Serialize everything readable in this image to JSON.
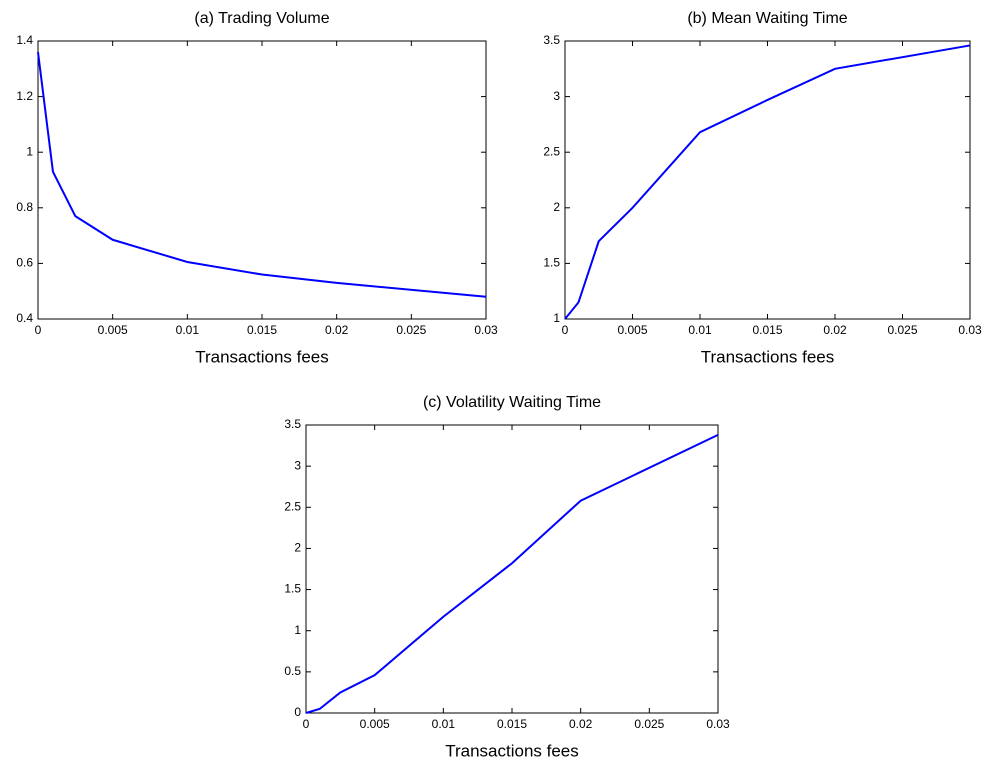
{
  "chart_data": [
    {
      "type": "line",
      "title": "(a) Trading Volume",
      "x_label": "Transactions fees",
      "x": [
        0,
        0.001,
        0.0025,
        0.005,
        0.01,
        0.015,
        0.02,
        0.03
      ],
      "values": [
        1.36,
        0.93,
        0.77,
        0.685,
        0.605,
        0.56,
        0.53,
        0.48
      ],
      "color": "#0000ff",
      "xlim": [
        0,
        0.03
      ],
      "xticks": [
        0,
        0.005,
        0.01,
        0.015,
        0.02,
        0.025,
        0.03
      ],
      "ylim": [
        0.4,
        1.4
      ],
      "yticks": [
        0.4,
        0.6,
        0.8,
        1,
        1.2,
        1.4
      ]
    },
    {
      "type": "line",
      "title": "(b) Mean Waiting Time",
      "x_label": "Transactions fees",
      "x": [
        0,
        0.001,
        0.0025,
        0.005,
        0.01,
        0.015,
        0.02,
        0.03
      ],
      "values": [
        1.0,
        1.15,
        1.7,
        2.0,
        2.68,
        2.97,
        3.25,
        3.46
      ],
      "color": "#0000ff",
      "xlim": [
        0,
        0.03
      ],
      "xticks": [
        0,
        0.005,
        0.01,
        0.015,
        0.02,
        0.025,
        0.03
      ],
      "ylim": [
        1,
        3.5
      ],
      "yticks": [
        1,
        1.5,
        2,
        2.5,
        3,
        3.5
      ]
    },
    {
      "type": "line",
      "title": "(c) Volatility Waiting Time",
      "x_label": "Transactions fees",
      "x": [
        0,
        0.001,
        0.0025,
        0.005,
        0.01,
        0.015,
        0.02,
        0.03
      ],
      "values": [
        0,
        0.05,
        0.25,
        0.46,
        1.17,
        1.82,
        2.58,
        3.38
      ],
      "color": "#0000ff",
      "xlim": [
        0,
        0.03
      ],
      "xticks": [
        0,
        0.005,
        0.01,
        0.015,
        0.02,
        0.025,
        0.03
      ],
      "ylim": [
        0,
        3.5
      ],
      "yticks": [
        0,
        0.5,
        1,
        1.5,
        2,
        2.5,
        3,
        3.5
      ]
    }
  ]
}
